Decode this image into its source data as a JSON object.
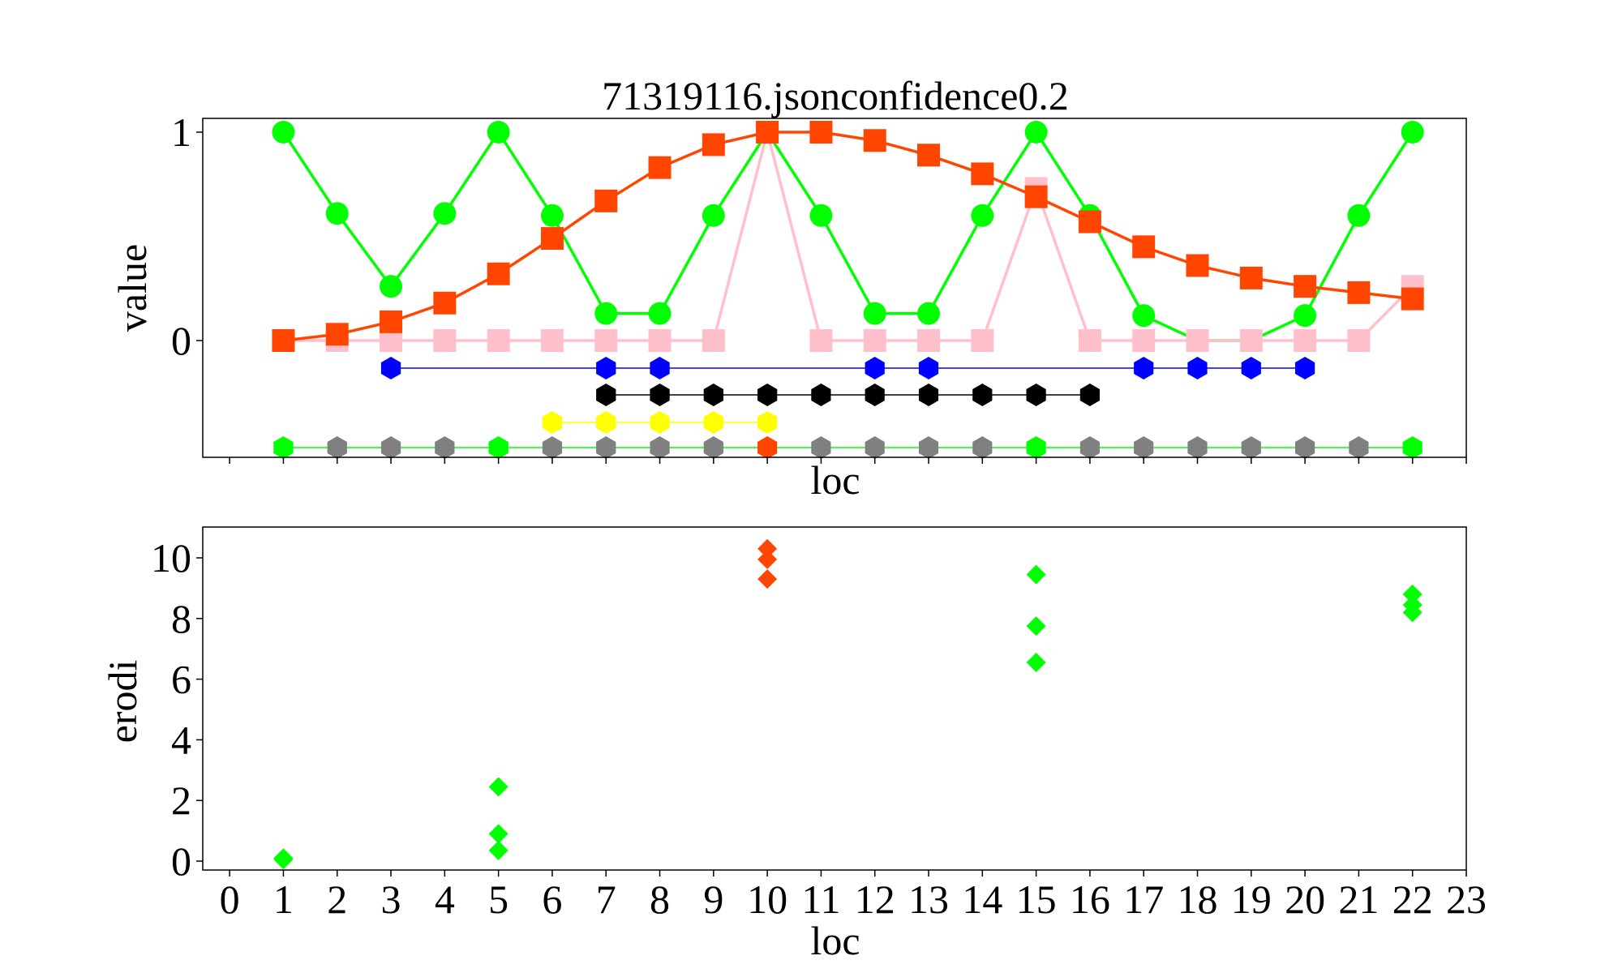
{
  "chart_data": [
    {
      "type": "line",
      "title": "71319116.jsonconfidence0.2",
      "xlabel": "loc",
      "ylabel": "value",
      "xlim": [
        -0.5,
        23
      ],
      "yticks": [
        0,
        1
      ],
      "grid": false,
      "series": [
        {
          "color": "#00ff00",
          "marker": "circle",
          "x": [
            1,
            2,
            3,
            4,
            5,
            6,
            7,
            8,
            9,
            10,
            11,
            12,
            13,
            14,
            15,
            16,
            17,
            18,
            19,
            20,
            21,
            22
          ],
          "y": [
            1,
            0.61,
            0.26,
            0.61,
            1,
            0.6,
            0.13,
            0.13,
            0.6,
            1,
            0.6,
            0.13,
            0.13,
            0.6,
            1,
            0.6,
            0.12,
            0,
            0,
            0.12,
            0.6,
            1
          ]
        },
        {
          "color": "#ffc0cb",
          "marker": "square",
          "x": [
            1,
            2,
            3,
            4,
            5,
            6,
            7,
            8,
            9,
            10,
            11,
            12,
            13,
            14,
            15,
            16,
            17,
            18,
            19,
            20,
            21,
            22
          ],
          "y": [
            0,
            0,
            0,
            0,
            0,
            0,
            0,
            0,
            0,
            1,
            0,
            0,
            0,
            0,
            0.73,
            0,
            0,
            0,
            0,
            0,
            0,
            0.26
          ]
        },
        {
          "color": "#ff4500",
          "marker": "square",
          "x": [
            1,
            2,
            3,
            4,
            5,
            6,
            7,
            8,
            9,
            10,
            11,
            12,
            13,
            14,
            15,
            16,
            17,
            18,
            19,
            20,
            21,
            22
          ],
          "y": [
            0,
            0.03,
            0.09,
            0.18,
            0.32,
            0.49,
            0.67,
            0.83,
            0.94,
            1,
            1,
            0.96,
            0.89,
            0.8,
            0.69,
            0.57,
            0.45,
            0.36,
            0.3,
            0.26,
            0.23,
            0.2
          ]
        },
        {
          "color": "#0000ff",
          "marker": "hexagon",
          "row": 1,
          "x": [
            3,
            7,
            8,
            12,
            13,
            17,
            18,
            19,
            20
          ]
        },
        {
          "color": "#000000",
          "marker": "hexagon",
          "row": 2,
          "x": [
            7,
            8,
            9,
            10,
            11,
            12,
            13,
            14,
            15,
            16
          ]
        },
        {
          "color": "#ffff00",
          "marker": "hexagon",
          "row": 3,
          "x": [
            6,
            7,
            8,
            9,
            10
          ]
        },
        {
          "color": "#00ff00",
          "marker": "hexagon",
          "row": 4,
          "x": [
            1,
            2,
            3,
            4,
            5,
            6,
            7,
            8,
            9,
            10,
            11,
            12,
            13,
            14,
            15,
            16,
            17,
            18,
            19,
            20,
            21,
            22
          ],
          "point_colors": [
            "#00ff00",
            "#808080",
            "#808080",
            "#808080",
            "#00ff00",
            "#808080",
            "#808080",
            "#808080",
            "#808080",
            "#ff4500",
            "#808080",
            "#808080",
            "#808080",
            "#808080",
            "#00ff00",
            "#808080",
            "#808080",
            "#808080",
            "#808080",
            "#808080",
            "#808080",
            "#00ff00"
          ]
        }
      ]
    },
    {
      "type": "scatter",
      "xlabel": "loc",
      "ylabel": "erodi",
      "xlim": [
        -0.5,
        23
      ],
      "ylim": [
        -0.5,
        10.8
      ],
      "xticks": [
        0,
        1,
        2,
        3,
        4,
        5,
        6,
        7,
        8,
        9,
        10,
        11,
        12,
        13,
        14,
        15,
        16,
        17,
        18,
        19,
        20,
        21,
        22,
        23
      ],
      "yticks": [
        0,
        2,
        4,
        6,
        8,
        10
      ],
      "grid": false,
      "points": [
        {
          "x": 1,
          "y": 0.05,
          "color": "#00ff00"
        },
        {
          "x": 1,
          "y": 0.1,
          "color": "#00ff00"
        },
        {
          "x": 5,
          "y": 0.35,
          "color": "#00ff00"
        },
        {
          "x": 5,
          "y": 0.9,
          "color": "#00ff00"
        },
        {
          "x": 5,
          "y": 2.45,
          "color": "#00ff00"
        },
        {
          "x": 10,
          "y": 9.3,
          "color": "#ff4500"
        },
        {
          "x": 10,
          "y": 9.95,
          "color": "#ff4500"
        },
        {
          "x": 10,
          "y": 10.3,
          "color": "#ff4500"
        },
        {
          "x": 15,
          "y": 6.55,
          "color": "#00ff00"
        },
        {
          "x": 15,
          "y": 7.75,
          "color": "#00ff00"
        },
        {
          "x": 15,
          "y": 9.45,
          "color": "#00ff00"
        },
        {
          "x": 22,
          "y": 8.2,
          "color": "#00ff00"
        },
        {
          "x": 22,
          "y": 8.45,
          "color": "#00ff00"
        },
        {
          "x": 22,
          "y": 8.8,
          "color": "#00ff00"
        }
      ]
    }
  ]
}
